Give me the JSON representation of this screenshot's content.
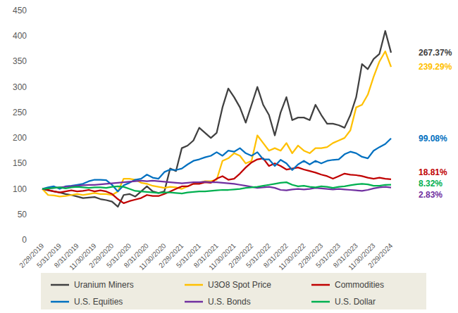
{
  "chart_data": {
    "type": "line",
    "categories": [
      "2/28/2019",
      null,
      null,
      "5/31/2019",
      null,
      null,
      "8/31/2019",
      null,
      null,
      "11/30/2019",
      null,
      null,
      "2/29/2020",
      null,
      null,
      "5/31/2020",
      null,
      null,
      "8/31/2020",
      null,
      null,
      "11/30/2020",
      null,
      null,
      "2/28/2021",
      null,
      null,
      "5/31/2021",
      null,
      null,
      "8/31/2021",
      null,
      null,
      "11/30/2021",
      null,
      null,
      "2/28/2022",
      null,
      null,
      "5/31/2022",
      null,
      null,
      "8/31/2022",
      null,
      null,
      "11/30/2022",
      null,
      null,
      "2/28/2023",
      null,
      null,
      "5/31/2023",
      null,
      null,
      "8/31/2023",
      null,
      null,
      "11/30/2023",
      null,
      null,
      "2/29/2024"
    ],
    "ylim": [
      0,
      450
    ],
    "yticks": [
      0,
      50,
      100,
      150,
      200,
      250,
      300,
      350,
      400,
      450
    ],
    "grid": false,
    "legend": "bottom",
    "series": [
      {
        "name": "Uranium Miners",
        "color": "#404040",
        "end_label": "267.37%",
        "values": [
          100,
          97,
          95,
          93,
          90,
          88,
          85,
          82,
          83,
          84,
          80,
          78,
          75,
          65,
          88,
          90,
          85,
          95,
          105,
          95,
          92,
          95,
          140,
          135,
          180,
          185,
          195,
          220,
          210,
          200,
          210,
          260,
          297,
          280,
          260,
          230,
          265,
          300,
          265,
          245,
          205,
          250,
          280,
          235,
          240,
          240,
          235,
          265,
          245,
          228,
          228,
          225,
          220,
          245,
          280,
          345,
          335,
          355,
          365,
          410,
          367.37
        ]
      },
      {
        "name": "U3O8 Spot Price",
        "color": "#ffc000",
        "end_label": "239.29%",
        "values": [
          100,
          88,
          87,
          85,
          86,
          88,
          90,
          88,
          90,
          92,
          90,
          90,
          88,
          95,
          120,
          120,
          118,
          112,
          110,
          106,
          104,
          102,
          104,
          103,
          100,
          105,
          110,
          112,
          115,
          115,
          118,
          155,
          160,
          170,
          165,
          150,
          155,
          205,
          190,
          175,
          180,
          175,
          190,
          170,
          185,
          175,
          170,
          180,
          180,
          182,
          190,
          195,
          200,
          215,
          260,
          265,
          285,
          320,
          350,
          370,
          339.29
        ]
      },
      {
        "name": "Commodities",
        "color": "#c00000",
        "end_label": "18.81%",
        "values": [
          100,
          98,
          95,
          93,
          95,
          97,
          95,
          96,
          98,
          95,
          97,
          95,
          90,
          80,
          72,
          76,
          79,
          82,
          88,
          86,
          86,
          90,
          95,
          100,
          105,
          105,
          110,
          110,
          113,
          112,
          120,
          125,
          118,
          120,
          130,
          142,
          152,
          158,
          160,
          145,
          150,
          145,
          138,
          140,
          142,
          138,
          135,
          132,
          128,
          125,
          120,
          125,
          130,
          128,
          127,
          125,
          122,
          120,
          122,
          120,
          118.81
        ]
      },
      {
        "name": "U.S. Equities",
        "color": "#0070c0",
        "end_label": "99.08%",
        "values": [
          100,
          103,
          105,
          100,
          105,
          106,
          108,
          110,
          115,
          118,
          118,
          117,
          108,
          95,
          107,
          112,
          118,
          120,
          128,
          122,
          120,
          133,
          138,
          137,
          140,
          148,
          155,
          158,
          162,
          165,
          172,
          165,
          175,
          173,
          180,
          170,
          165,
          172,
          158,
          158,
          145,
          157,
          150,
          137,
          148,
          155,
          148,
          155,
          150,
          155,
          157,
          158,
          168,
          173,
          170,
          163,
          160,
          175,
          182,
          188,
          199.08
        ]
      },
      {
        "name": "U.S. Bonds",
        "color": "#7030a0",
        "end_label": "2.83%",
        "values": [
          100,
          101,
          102,
          103,
          104,
          105,
          106,
          107,
          108,
          108,
          109,
          110,
          111,
          112,
          113,
          114,
          115,
          116,
          115,
          116,
          115,
          114,
          113,
          112,
          111,
          112,
          113,
          113,
          114,
          113,
          113,
          112,
          111,
          110,
          108,
          106,
          104,
          102,
          103,
          104,
          102,
          98,
          97,
          99,
          100,
          99,
          100,
          102,
          101,
          100,
          99,
          100,
          99,
          98,
          97,
          96,
          98,
          101,
          103,
          104,
          102.83
        ]
      },
      {
        "name": "U.S. Dollar",
        "color": "#00b050",
        "end_label": "8.32%",
        "values": [
          100,
          101,
          102,
          103,
          101,
          103,
          104,
          103,
          102,
          103,
          103,
          102,
          104,
          105,
          104,
          100,
          96,
          95,
          94,
          93,
          92,
          93,
          93,
          92,
          91,
          93,
          94,
          95,
          95,
          96,
          97,
          98,
          98,
          99,
          100,
          102,
          103,
          104,
          106,
          108,
          110,
          112,
          113,
          108,
          105,
          106,
          104,
          103,
          105,
          104,
          102,
          104,
          105,
          107,
          109,
          110,
          109,
          106,
          106,
          108,
          108.32
        ]
      }
    ]
  }
}
